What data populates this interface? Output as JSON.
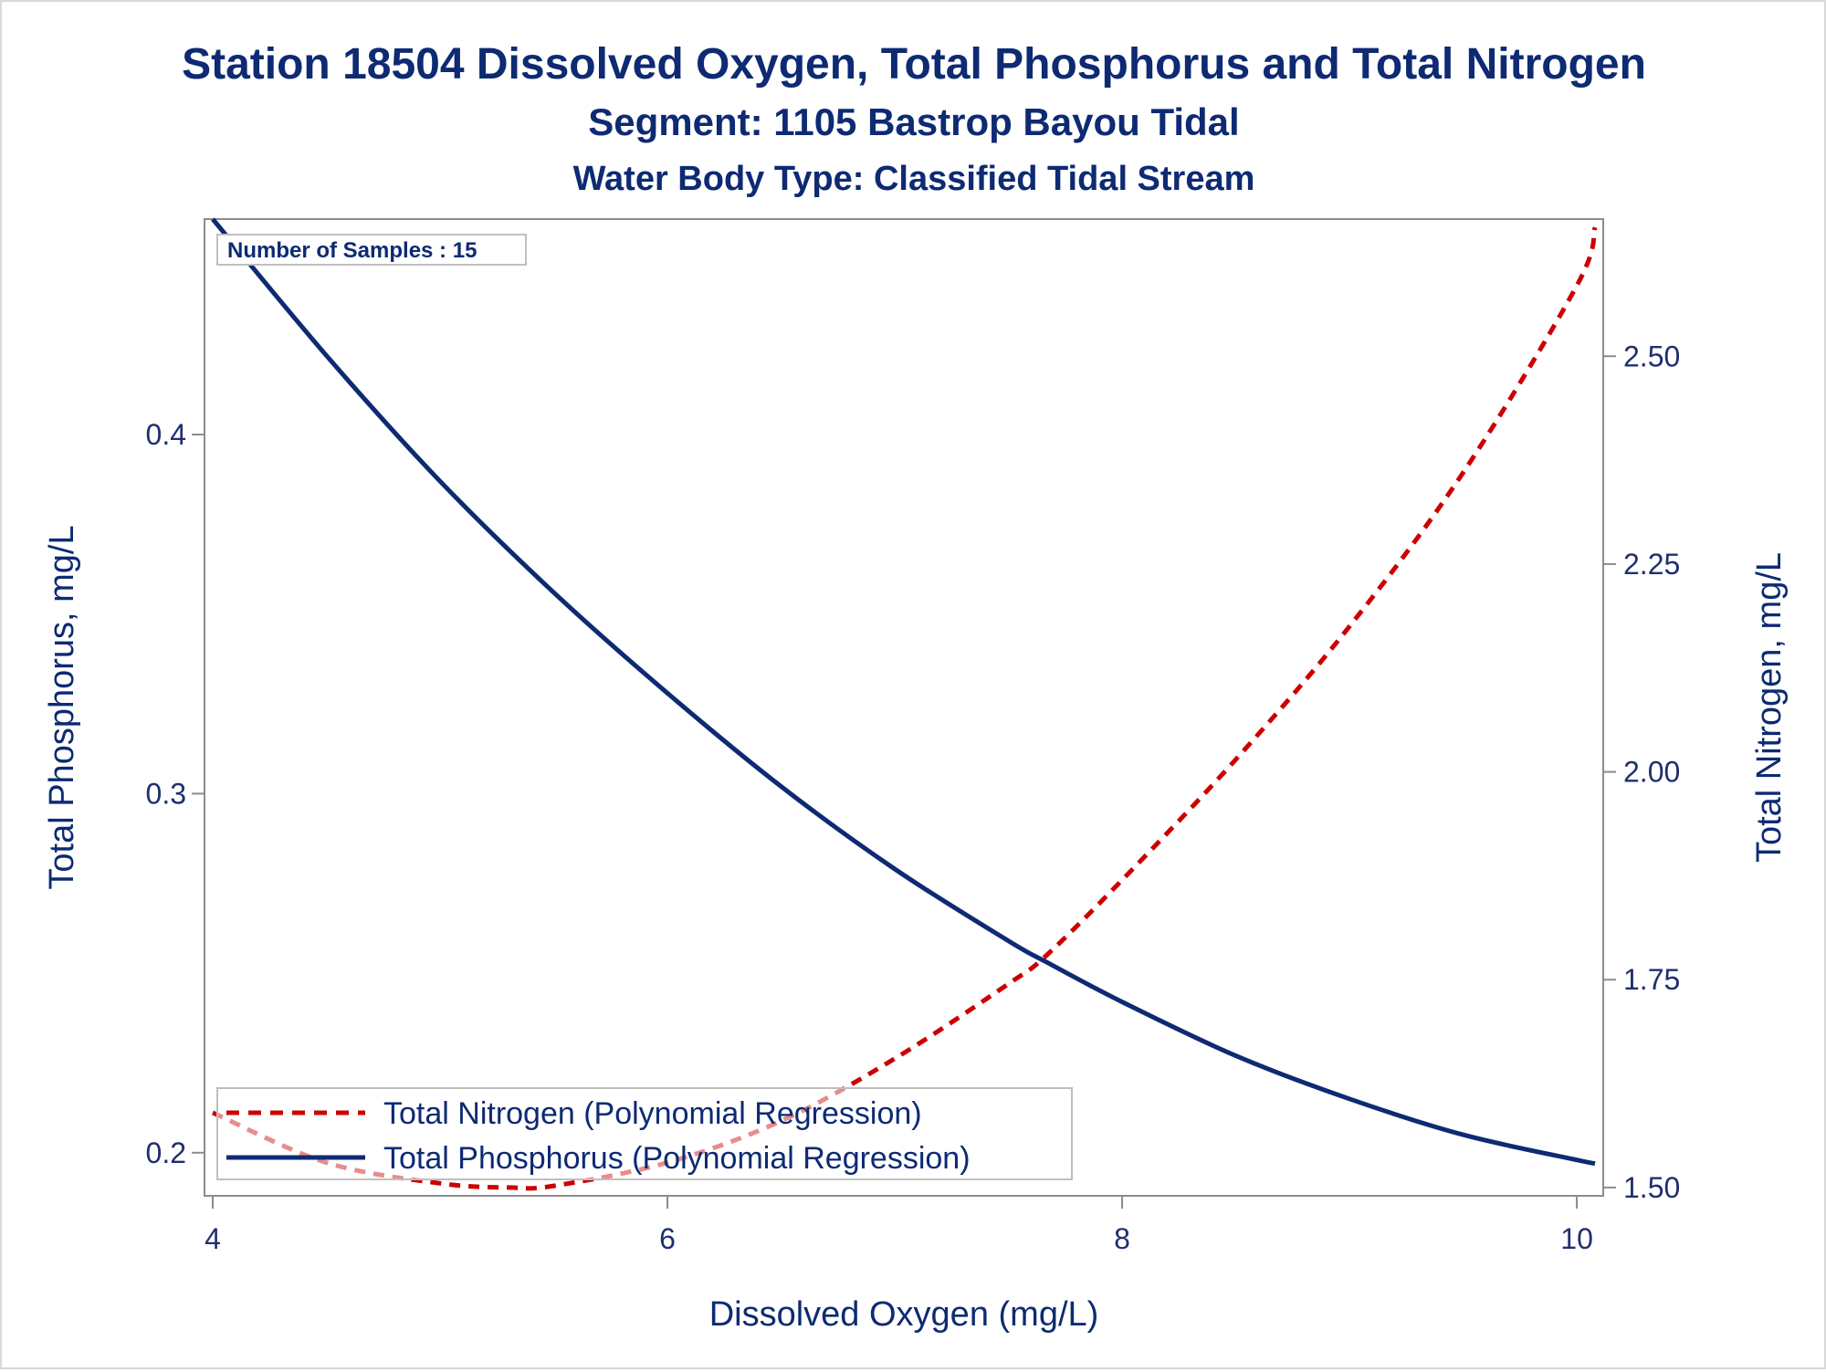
{
  "chart_data": {
    "type": "line",
    "title": "Station 18504  Dissolved Oxygen, Total Phosphorus and Total Nitrogen",
    "subtitle": "Segment: 1105  Bastrop Bayou Tidal",
    "subtitle2": "Water Body Type: Classified Tidal Stream",
    "xlabel": "Dissolved Oxygen (mg/L)",
    "ylabel_left": "Total Phosphorus, mg/L",
    "ylabel_right": "Total Nitrogen, mg/L",
    "xlim": [
      4,
      10.08
    ],
    "ylim_left": [
      0.188,
      0.46
    ],
    "ylim_right": [
      1.49,
      2.665
    ],
    "x_ticks": [
      4,
      6,
      8,
      10
    ],
    "x_tick_labels": [
      "4",
      "6",
      "8",
      "10"
    ],
    "y_left_ticks": [
      0.2,
      0.3,
      0.4
    ],
    "y_left_tick_labels": [
      "0.2",
      "0.3",
      "0.4"
    ],
    "y_right_ticks": [
      1.5,
      1.75,
      2.0,
      2.25,
      2.5
    ],
    "y_right_tick_labels": [
      "1.50",
      "1.75",
      "2.00",
      "2.25",
      "2.50"
    ],
    "inset_text": "Number of Samples : 15",
    "legend_position": "bottom-left",
    "series": [
      {
        "name": "Total Nitrogen (Polynomial Regression)",
        "axis": "right",
        "color": "#cc0000",
        "style": "dashed",
        "x": [
          4.0,
          4.5,
          5.0,
          5.3,
          5.5,
          6.0,
          6.5,
          7.0,
          7.5,
          7.67,
          8.0,
          8.5,
          9.0,
          9.5,
          10.0,
          10.08
        ],
        "y": [
          1.59,
          1.53,
          1.505,
          1.5,
          1.502,
          1.53,
          1.58,
          1.655,
          1.745,
          1.78,
          1.87,
          2.015,
          2.175,
          2.36,
          2.585,
          2.655
        ]
      },
      {
        "name": "Total Phosphorus (Polynomial Regression)",
        "axis": "left",
        "color": "#0d2a73",
        "style": "solid",
        "x": [
          4.0,
          4.5,
          5.0,
          5.5,
          6.0,
          6.5,
          7.0,
          7.5,
          7.67,
          8.0,
          8.5,
          9.0,
          9.5,
          10.0,
          10.08
        ],
        "y": [
          0.46,
          0.422,
          0.387,
          0.356,
          0.328,
          0.302,
          0.279,
          0.259,
          0.253,
          0.242,
          0.227,
          0.215,
          0.205,
          0.198,
          0.197
        ]
      }
    ]
  }
}
